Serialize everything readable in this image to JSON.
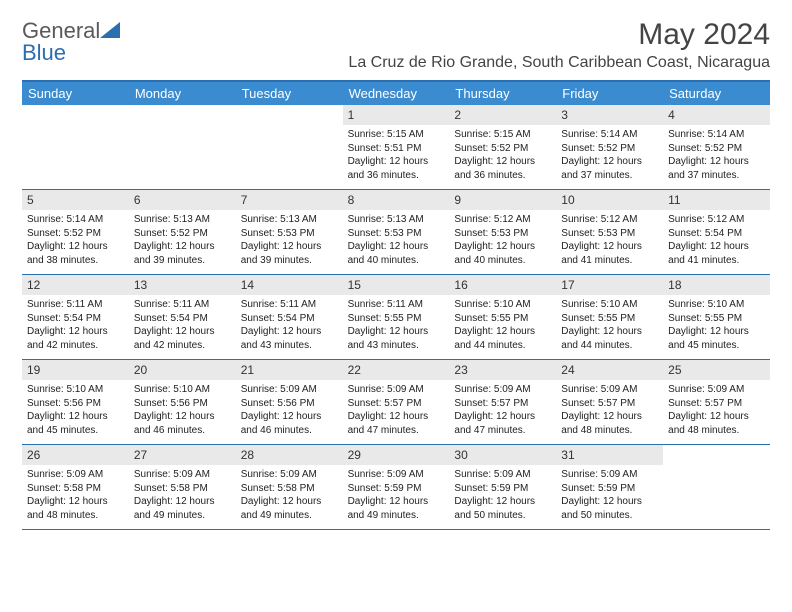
{
  "logo": {
    "text1": "General",
    "text2": "Blue"
  },
  "title": "May 2024",
  "location": "La Cruz de Rio Grande, South Caribbean Coast, Nicaragua",
  "colors": {
    "header_bg": "#3a8bd0",
    "header_text": "#ffffff",
    "border": "#2b6fb0",
    "daynum_bg": "#e9e9e9",
    "text": "#222222",
    "logo_gray": "#5a5a5a",
    "logo_blue": "#2b6fb0",
    "background": "#ffffff"
  },
  "typography": {
    "title_fontsize": 30,
    "location_fontsize": 16,
    "dayheader_fontsize": 13,
    "daynum_fontsize": 12,
    "cell_fontsize": 10,
    "logo_fontsize": 22
  },
  "day_names": [
    "Sunday",
    "Monday",
    "Tuesday",
    "Wednesday",
    "Thursday",
    "Friday",
    "Saturday"
  ],
  "weeks": [
    [
      {
        "n": "",
        "sr": "",
        "ss": "",
        "dl": ""
      },
      {
        "n": "",
        "sr": "",
        "ss": "",
        "dl": ""
      },
      {
        "n": "",
        "sr": "",
        "ss": "",
        "dl": ""
      },
      {
        "n": "1",
        "sr": "Sunrise: 5:15 AM",
        "ss": "Sunset: 5:51 PM",
        "dl": "Daylight: 12 hours and 36 minutes."
      },
      {
        "n": "2",
        "sr": "Sunrise: 5:15 AM",
        "ss": "Sunset: 5:52 PM",
        "dl": "Daylight: 12 hours and 36 minutes."
      },
      {
        "n": "3",
        "sr": "Sunrise: 5:14 AM",
        "ss": "Sunset: 5:52 PM",
        "dl": "Daylight: 12 hours and 37 minutes."
      },
      {
        "n": "4",
        "sr": "Sunrise: 5:14 AM",
        "ss": "Sunset: 5:52 PM",
        "dl": "Daylight: 12 hours and 37 minutes."
      }
    ],
    [
      {
        "n": "5",
        "sr": "Sunrise: 5:14 AM",
        "ss": "Sunset: 5:52 PM",
        "dl": "Daylight: 12 hours and 38 minutes."
      },
      {
        "n": "6",
        "sr": "Sunrise: 5:13 AM",
        "ss": "Sunset: 5:52 PM",
        "dl": "Daylight: 12 hours and 39 minutes."
      },
      {
        "n": "7",
        "sr": "Sunrise: 5:13 AM",
        "ss": "Sunset: 5:53 PM",
        "dl": "Daylight: 12 hours and 39 minutes."
      },
      {
        "n": "8",
        "sr": "Sunrise: 5:13 AM",
        "ss": "Sunset: 5:53 PM",
        "dl": "Daylight: 12 hours and 40 minutes."
      },
      {
        "n": "9",
        "sr": "Sunrise: 5:12 AM",
        "ss": "Sunset: 5:53 PM",
        "dl": "Daylight: 12 hours and 40 minutes."
      },
      {
        "n": "10",
        "sr": "Sunrise: 5:12 AM",
        "ss": "Sunset: 5:53 PM",
        "dl": "Daylight: 12 hours and 41 minutes."
      },
      {
        "n": "11",
        "sr": "Sunrise: 5:12 AM",
        "ss": "Sunset: 5:54 PM",
        "dl": "Daylight: 12 hours and 41 minutes."
      }
    ],
    [
      {
        "n": "12",
        "sr": "Sunrise: 5:11 AM",
        "ss": "Sunset: 5:54 PM",
        "dl": "Daylight: 12 hours and 42 minutes."
      },
      {
        "n": "13",
        "sr": "Sunrise: 5:11 AM",
        "ss": "Sunset: 5:54 PM",
        "dl": "Daylight: 12 hours and 42 minutes."
      },
      {
        "n": "14",
        "sr": "Sunrise: 5:11 AM",
        "ss": "Sunset: 5:54 PM",
        "dl": "Daylight: 12 hours and 43 minutes."
      },
      {
        "n": "15",
        "sr": "Sunrise: 5:11 AM",
        "ss": "Sunset: 5:55 PM",
        "dl": "Daylight: 12 hours and 43 minutes."
      },
      {
        "n": "16",
        "sr": "Sunrise: 5:10 AM",
        "ss": "Sunset: 5:55 PM",
        "dl": "Daylight: 12 hours and 44 minutes."
      },
      {
        "n": "17",
        "sr": "Sunrise: 5:10 AM",
        "ss": "Sunset: 5:55 PM",
        "dl": "Daylight: 12 hours and 44 minutes."
      },
      {
        "n": "18",
        "sr": "Sunrise: 5:10 AM",
        "ss": "Sunset: 5:55 PM",
        "dl": "Daylight: 12 hours and 45 minutes."
      }
    ],
    [
      {
        "n": "19",
        "sr": "Sunrise: 5:10 AM",
        "ss": "Sunset: 5:56 PM",
        "dl": "Daylight: 12 hours and 45 minutes."
      },
      {
        "n": "20",
        "sr": "Sunrise: 5:10 AM",
        "ss": "Sunset: 5:56 PM",
        "dl": "Daylight: 12 hours and 46 minutes."
      },
      {
        "n": "21",
        "sr": "Sunrise: 5:09 AM",
        "ss": "Sunset: 5:56 PM",
        "dl": "Daylight: 12 hours and 46 minutes."
      },
      {
        "n": "22",
        "sr": "Sunrise: 5:09 AM",
        "ss": "Sunset: 5:57 PM",
        "dl": "Daylight: 12 hours and 47 minutes."
      },
      {
        "n": "23",
        "sr": "Sunrise: 5:09 AM",
        "ss": "Sunset: 5:57 PM",
        "dl": "Daylight: 12 hours and 47 minutes."
      },
      {
        "n": "24",
        "sr": "Sunrise: 5:09 AM",
        "ss": "Sunset: 5:57 PM",
        "dl": "Daylight: 12 hours and 48 minutes."
      },
      {
        "n": "25",
        "sr": "Sunrise: 5:09 AM",
        "ss": "Sunset: 5:57 PM",
        "dl": "Daylight: 12 hours and 48 minutes."
      }
    ],
    [
      {
        "n": "26",
        "sr": "Sunrise: 5:09 AM",
        "ss": "Sunset: 5:58 PM",
        "dl": "Daylight: 12 hours and 48 minutes."
      },
      {
        "n": "27",
        "sr": "Sunrise: 5:09 AM",
        "ss": "Sunset: 5:58 PM",
        "dl": "Daylight: 12 hours and 49 minutes."
      },
      {
        "n": "28",
        "sr": "Sunrise: 5:09 AM",
        "ss": "Sunset: 5:58 PM",
        "dl": "Daylight: 12 hours and 49 minutes."
      },
      {
        "n": "29",
        "sr": "Sunrise: 5:09 AM",
        "ss": "Sunset: 5:59 PM",
        "dl": "Daylight: 12 hours and 49 minutes."
      },
      {
        "n": "30",
        "sr": "Sunrise: 5:09 AM",
        "ss": "Sunset: 5:59 PM",
        "dl": "Daylight: 12 hours and 50 minutes."
      },
      {
        "n": "31",
        "sr": "Sunrise: 5:09 AM",
        "ss": "Sunset: 5:59 PM",
        "dl": "Daylight: 12 hours and 50 minutes."
      },
      {
        "n": "",
        "sr": "",
        "ss": "",
        "dl": ""
      }
    ]
  ]
}
